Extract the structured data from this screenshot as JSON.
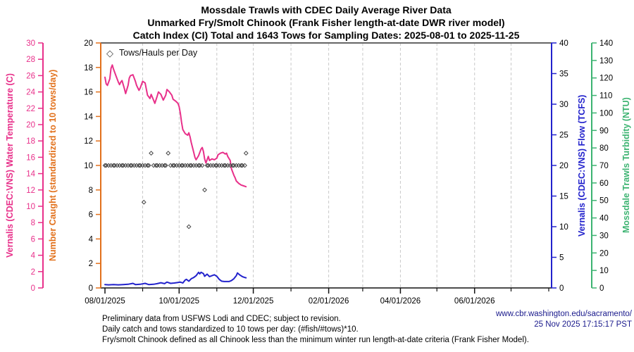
{
  "title": {
    "line1": "Mossdale Trawls with CDEC Daily Average River Data",
    "line2": "Unmarked Fry/Smolt Chinook (Frank Fisher length-at-date DWR river model)",
    "line3": "Catch Index (CI) Total and 1643 Tows for Sampling Dates: 2025-08-01 to 2025-11-25"
  },
  "legend": {
    "marker": "open-diamond",
    "label": "Tows/Hauls per Day"
  },
  "axes": {
    "temperature": {
      "label": "Vernalis (CDEC:VNS) Water Temperature (C)",
      "color": "#E8308A",
      "min": 0,
      "max": 30,
      "step": 2,
      "tick_label_color": "#E8308A"
    },
    "catch": {
      "label": "Number Caught (standardized to 10 tows/day)",
      "color": "#E2711C",
      "min": 0,
      "max": 20,
      "step": 2,
      "tick_label_color": "#000000"
    },
    "flow": {
      "label": "Vernalis (CDEC:VNS) Flow (TCFS)",
      "color": "#2222CC",
      "min": 0,
      "max": 40,
      "step": 5,
      "tick_label_color": "#000000"
    },
    "turbidity": {
      "label": "Mossdale Trawls Turbidity (NTU)",
      "color": "#3CB371",
      "min": 0,
      "max": 140,
      "step": 10,
      "tick_label_color": "#000000"
    }
  },
  "chart_data": {
    "type": "line+scatter",
    "title": "Mossdale Trawls with CDEC Daily Average River Data",
    "x_unit": "days since 2025-08-01",
    "x_range_days": [
      0,
      365
    ],
    "grid": "vertical dashed monthly",
    "legend_position": "top-left inside",
    "x_ticks_major": [
      {
        "day": 0,
        "label": "08/01/2025"
      },
      {
        "day": 61,
        "label": "10/01/2025"
      },
      {
        "day": 122,
        "label": "12/01/2025"
      },
      {
        "day": 184,
        "label": "02/01/2026"
      },
      {
        "day": 243,
        "label": "04/01/2026"
      },
      {
        "day": 304,
        "label": "06/01/2026"
      }
    ],
    "x_ticks_minor_days": [
      31,
      92,
      153,
      212,
      273,
      334,
      365
    ],
    "gridline_days": [
      31,
      61,
      92,
      122,
      153,
      184,
      212,
      243,
      273,
      304,
      334
    ],
    "series": [
      {
        "name": "Vernalis Water Temperature (C)",
        "axis": "temperature",
        "type": "line",
        "color": "#E8308A",
        "points": [
          [
            0,
            25.8
          ],
          [
            1,
            25.0
          ],
          [
            2,
            24.8
          ],
          [
            4,
            25.6
          ],
          [
            5,
            26.9
          ],
          [
            6,
            27.3
          ],
          [
            7,
            26.8
          ],
          [
            9,
            26.0
          ],
          [
            11,
            25.2
          ],
          [
            12,
            24.9
          ],
          [
            13,
            25.2
          ],
          [
            14,
            25.4
          ],
          [
            16,
            24.4
          ],
          [
            17,
            23.8
          ],
          [
            19,
            24.8
          ],
          [
            20,
            25.7
          ],
          [
            21,
            26.0
          ],
          [
            23,
            26.1
          ],
          [
            25,
            25.3
          ],
          [
            26,
            24.8
          ],
          [
            28,
            24.2
          ],
          [
            29,
            24.5
          ],
          [
            31,
            25.3
          ],
          [
            33,
            25.1
          ],
          [
            35,
            23.6
          ],
          [
            37,
            23.2
          ],
          [
            38,
            23.7
          ],
          [
            40,
            23.0
          ],
          [
            41,
            22.6
          ],
          [
            43,
            23.5
          ],
          [
            44,
            24.0
          ],
          [
            46,
            23.7
          ],
          [
            48,
            23.0
          ],
          [
            50,
            23.6
          ],
          [
            51,
            24.3
          ],
          [
            53,
            24.0
          ],
          [
            55,
            23.6
          ],
          [
            56,
            23.1
          ],
          [
            58,
            22.9
          ],
          [
            60,
            22.6
          ],
          [
            61,
            22.2
          ],
          [
            62,
            21.4
          ],
          [
            63,
            20.3
          ],
          [
            64,
            19.4
          ],
          [
            66,
            18.9
          ],
          [
            68,
            18.7
          ],
          [
            69,
            19.0
          ],
          [
            70,
            18.5
          ],
          [
            71,
            17.8
          ],
          [
            73,
            16.6
          ],
          [
            74,
            16.0
          ],
          [
            75,
            15.7
          ],
          [
            77,
            16.2
          ],
          [
            79,
            17.0
          ],
          [
            80,
            17.2
          ],
          [
            81,
            16.7
          ],
          [
            82,
            15.8
          ],
          [
            83,
            15.3
          ],
          [
            85,
            16.1
          ],
          [
            86,
            15.6
          ],
          [
            88,
            15.8
          ],
          [
            90,
            15.7
          ],
          [
            92,
            15.9
          ],
          [
            93,
            16.3
          ],
          [
            95,
            16.5
          ],
          [
            97,
            16.6
          ],
          [
            99,
            16.4
          ],
          [
            100,
            16.5
          ],
          [
            101,
            16.1
          ],
          [
            103,
            15.6
          ],
          [
            104,
            14.6
          ],
          [
            106,
            13.8
          ],
          [
            107,
            13.5
          ],
          [
            108,
            13.1
          ],
          [
            110,
            12.8
          ],
          [
            112,
            12.6
          ],
          [
            114,
            12.5
          ],
          [
            116,
            12.4
          ]
        ]
      },
      {
        "name": "Vernalis Flow (TCFS)",
        "axis": "flow",
        "type": "line",
        "color": "#2222CC",
        "points": [
          [
            0,
            0.55
          ],
          [
            3,
            0.5
          ],
          [
            7,
            0.55
          ],
          [
            11,
            0.5
          ],
          [
            15,
            0.55
          ],
          [
            19,
            0.6
          ],
          [
            23,
            0.75
          ],
          [
            25,
            0.55
          ],
          [
            29,
            0.6
          ],
          [
            33,
            0.75
          ],
          [
            36,
            0.55
          ],
          [
            40,
            0.6
          ],
          [
            43,
            0.7
          ],
          [
            46,
            0.85
          ],
          [
            49,
            0.7
          ],
          [
            51,
            0.95
          ],
          [
            54,
            0.75
          ],
          [
            57,
            0.8
          ],
          [
            60,
            0.9
          ],
          [
            62,
            0.95
          ],
          [
            64,
            0.8
          ],
          [
            66,
            1.3
          ],
          [
            67,
            1.4
          ],
          [
            69,
            1.1
          ],
          [
            71,
            1.5
          ],
          [
            73,
            1.7
          ],
          [
            75,
            2.0
          ],
          [
            77,
            2.55
          ],
          [
            78,
            2.3
          ],
          [
            79,
            2.55
          ],
          [
            81,
            2.35
          ],
          [
            82,
            1.9
          ],
          [
            84,
            2.25
          ],
          [
            86,
            1.85
          ],
          [
            88,
            2.0
          ],
          [
            90,
            2.15
          ],
          [
            92,
            1.9
          ],
          [
            94,
            1.4
          ],
          [
            96,
            1.1
          ],
          [
            98,
            1.05
          ],
          [
            100,
            1.05
          ],
          [
            102,
            1.05
          ],
          [
            104,
            1.2
          ],
          [
            106,
            1.5
          ],
          [
            108,
            2.0
          ],
          [
            109,
            2.45
          ],
          [
            111,
            2.1
          ],
          [
            113,
            1.85
          ],
          [
            115,
            1.7
          ],
          [
            116,
            1.65
          ]
        ]
      },
      {
        "name": "Tows/Hauls per Day",
        "axis": "catch",
        "type": "scatter",
        "marker": "open-diamond",
        "color": "#444444",
        "points": [
          [
            0,
            10
          ],
          [
            1,
            10
          ],
          [
            3,
            10
          ],
          [
            5,
            10
          ],
          [
            7,
            10
          ],
          [
            8,
            10
          ],
          [
            10,
            10
          ],
          [
            12,
            10
          ],
          [
            14,
            10
          ],
          [
            15,
            10
          ],
          [
            17,
            10
          ],
          [
            19,
            10
          ],
          [
            21,
            10
          ],
          [
            22,
            10
          ],
          [
            24,
            10
          ],
          [
            26,
            10
          ],
          [
            28,
            10
          ],
          [
            29,
            10
          ],
          [
            31,
            10
          ],
          [
            32,
            7
          ],
          [
            33,
            10
          ],
          [
            35,
            10
          ],
          [
            36,
            10
          ],
          [
            38,
            11
          ],
          [
            40,
            10
          ],
          [
            42,
            10
          ],
          [
            43,
            10
          ],
          [
            45,
            10
          ],
          [
            47,
            10
          ],
          [
            49,
            10
          ],
          [
            50,
            10
          ],
          [
            52,
            11
          ],
          [
            54,
            10
          ],
          [
            56,
            10
          ],
          [
            57,
            10
          ],
          [
            59,
            10
          ],
          [
            61,
            10
          ],
          [
            63,
            10
          ],
          [
            64,
            10
          ],
          [
            66,
            10
          ],
          [
            68,
            10
          ],
          [
            69,
            5
          ],
          [
            70,
            10
          ],
          [
            71,
            10
          ],
          [
            73,
            10
          ],
          [
            75,
            10
          ],
          [
            77,
            10
          ],
          [
            78,
            10
          ],
          [
            80,
            10
          ],
          [
            82,
            8
          ],
          [
            84,
            10
          ],
          [
            85,
            10
          ],
          [
            87,
            10
          ],
          [
            89,
            10
          ],
          [
            91,
            10
          ],
          [
            92,
            10
          ],
          [
            94,
            10
          ],
          [
            96,
            10
          ],
          [
            98,
            10
          ],
          [
            99,
            10
          ],
          [
            101,
            10
          ],
          [
            103,
            10
          ],
          [
            105,
            10
          ],
          [
            106,
            10
          ],
          [
            108,
            10
          ],
          [
            110,
            10
          ],
          [
            112,
            10
          ],
          [
            113,
            10
          ],
          [
            115,
            10
          ],
          [
            116,
            11
          ]
        ]
      }
    ]
  },
  "footer": {
    "note1": "Preliminary data from USFWS Lodi and CDEC; subject to revision.",
    "note2": "Daily catch and tows standardized to 10 tows per day: (#fish/#tows)*10.",
    "note3": "Fry/smolt Chinook defined as all Chinook less than the minimum winter run length-at-date criteria (Frank Fisher Model).",
    "url": "www.cbr.washington.edu/sacramento/",
    "timestamp": "25 Nov 2025 17:15:17 PST",
    "credit_color": "#1A1A8C"
  }
}
